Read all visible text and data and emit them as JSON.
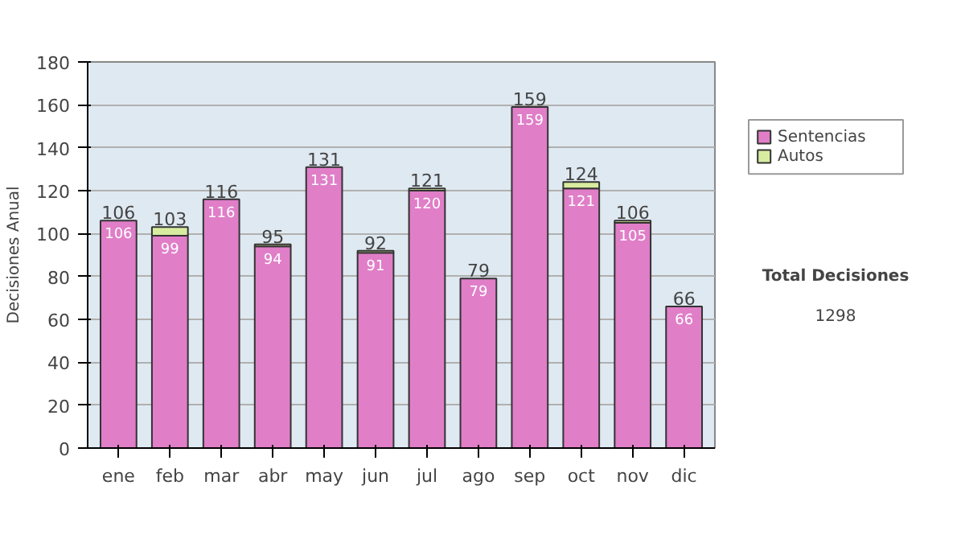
{
  "chart_data": {
    "type": "bar",
    "stacked": true,
    "ylabel": "Decisiones Anual",
    "categories": [
      "ene",
      "feb",
      "mar",
      "abr",
      "may",
      "jun",
      "jul",
      "ago",
      "sep",
      "oct",
      "nov",
      "dic"
    ],
    "series": [
      {
        "name": "Sentencias",
        "color": "#e07ec8",
        "values": [
          106,
          99,
          116,
          94,
          131,
          91,
          120,
          79,
          159,
          121,
          105,
          66
        ],
        "value_labels": [
          "106",
          "99",
          "116",
          "94",
          "131",
          "91",
          "120",
          "79",
          "159",
          "121",
          "105",
          "66"
        ]
      },
      {
        "name": "Autos",
        "color": "#d8eca0",
        "values": [
          null,
          4,
          null,
          1,
          null,
          1,
          1,
          null,
          null,
          3,
          1,
          null
        ]
      }
    ],
    "totals": [
      "106",
      "103",
      "116",
      "95",
      "131",
      "92",
      "121",
      "79",
      "159",
      "124",
      "106",
      "66"
    ],
    "ylim": [
      0,
      180
    ],
    "yticks": [
      0,
      20,
      40,
      60,
      80,
      100,
      120,
      140,
      160,
      180
    ],
    "grid": "y",
    "legend": "right",
    "annotations": [
      "Total Decisiones",
      "1298"
    ]
  }
}
